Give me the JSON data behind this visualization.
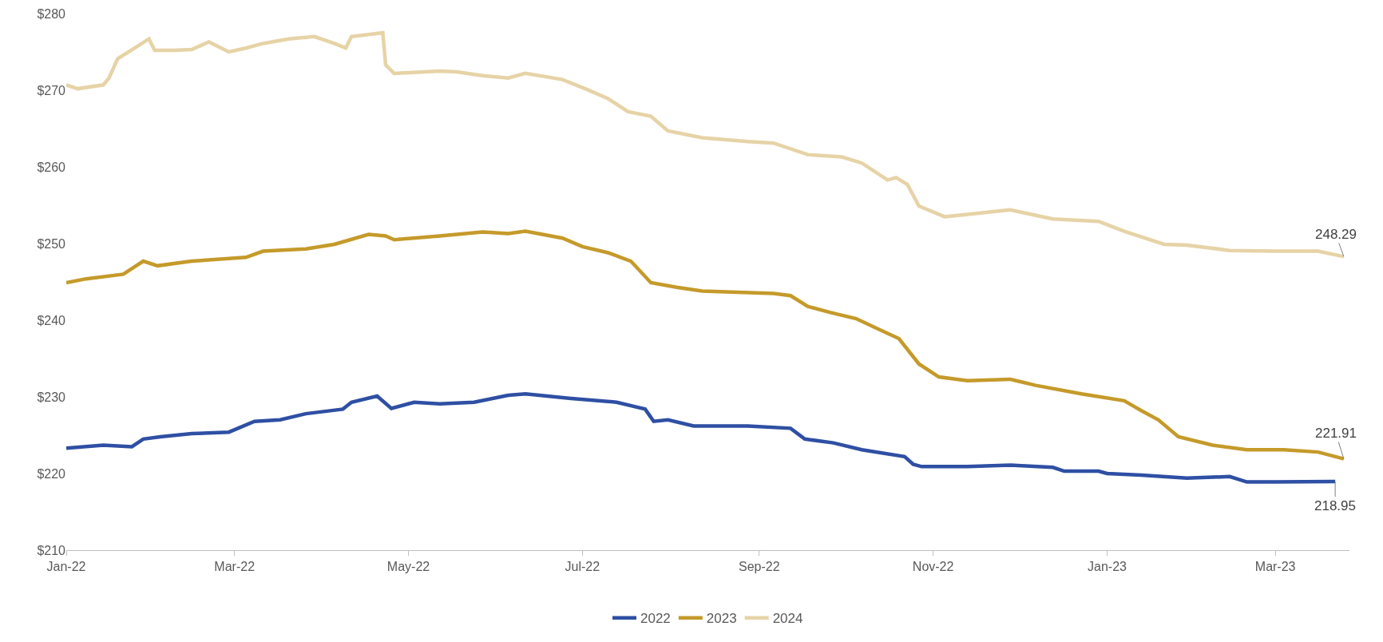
{
  "chart_data": {
    "type": "line",
    "xlim": [
      "2022-01-01",
      "2023-03-27"
    ],
    "xticks": [
      {
        "value": "2022-01-01",
        "label": "Jan-22"
      },
      {
        "value": "2022-03-01",
        "label": "Mar-22"
      },
      {
        "value": "2022-05-01",
        "label": "May-22"
      },
      {
        "value": "2022-07-01",
        "label": "Jul-22"
      },
      {
        "value": "2022-09-01",
        "label": "Sep-22"
      },
      {
        "value": "2022-11-01",
        "label": "Nov-22"
      },
      {
        "value": "2023-01-01",
        "label": "Jan-23"
      },
      {
        "value": "2023-03-01",
        "label": "Mar-23"
      }
    ],
    "ylim": [
      210,
      280
    ],
    "yticks": [
      {
        "value": 210,
        "label": "$210"
      },
      {
        "value": 220,
        "label": "$220"
      },
      {
        "value": 230,
        "label": "$230"
      },
      {
        "value": 240,
        "label": "$240"
      },
      {
        "value": 250,
        "label": "$250"
      },
      {
        "value": 260,
        "label": "$260"
      },
      {
        "value": 270,
        "label": "$270"
      },
      {
        "value": 280,
        "label": "$280"
      }
    ],
    "grid": false,
    "legend": "bottom",
    "marker": "none",
    "line_style": "solid",
    "series": [
      {
        "name": "2022",
        "color": "#2e4fa3",
        "x": [
          "2022-01-01",
          "2022-01-14",
          "2022-01-24",
          "2022-01-28",
          "2022-02-03",
          "2022-02-14",
          "2022-02-27",
          "2022-03-08",
          "2022-03-17",
          "2022-03-26",
          "2022-04-08",
          "2022-04-11",
          "2022-04-20",
          "2022-04-25",
          "2022-05-03",
          "2022-05-12",
          "2022-05-24",
          "2022-06-05",
          "2022-06-11",
          "2022-06-27",
          "2022-07-13",
          "2022-07-23",
          "2022-07-26",
          "2022-07-31",
          "2022-08-09",
          "2022-08-28",
          "2022-09-12",
          "2022-09-17",
          "2022-09-27",
          "2022-10-07",
          "2022-10-22",
          "2022-10-25",
          "2022-10-28",
          "2022-11-13",
          "2022-11-28",
          "2022-12-13",
          "2022-12-17",
          "2022-12-29",
          "2023-01-01",
          "2023-01-13",
          "2023-01-29",
          "2023-02-13",
          "2023-02-19",
          "2023-03-01",
          "2023-03-22"
        ],
        "values": [
          223.3,
          223.7,
          223.5,
          224.5,
          224.8,
          225.2,
          225.4,
          226.8,
          227.0,
          227.8,
          228.4,
          229.3,
          230.1,
          228.5,
          229.3,
          229.1,
          229.3,
          230.2,
          230.4,
          229.8,
          229.3,
          228.4,
          226.8,
          227.0,
          226.2,
          226.2,
          225.9,
          224.5,
          224.0,
          223.1,
          222.2,
          221.2,
          220.9,
          220.9,
          221.1,
          220.8,
          220.3,
          220.3,
          220.0,
          219.8,
          219.4,
          219.6,
          218.9,
          218.9,
          218.95
        ]
      },
      {
        "name": "2023",
        "color": "#c59a2a",
        "x": [
          "2022-01-01",
          "2022-01-08",
          "2022-01-21",
          "2022-01-28",
          "2022-02-02",
          "2022-02-14",
          "2022-03-05",
          "2022-03-11",
          "2022-03-26",
          "2022-04-05",
          "2022-04-17",
          "2022-04-23",
          "2022-04-26",
          "2022-05-12",
          "2022-05-27",
          "2022-06-05",
          "2022-06-11",
          "2022-06-24",
          "2022-07-01",
          "2022-07-10",
          "2022-07-18",
          "2022-07-25",
          "2022-08-03",
          "2022-08-12",
          "2022-09-06",
          "2022-09-12",
          "2022-09-18",
          "2022-09-26",
          "2022-10-05",
          "2022-10-13",
          "2022-10-20",
          "2022-10-27",
          "2022-11-03",
          "2022-11-13",
          "2022-11-28",
          "2022-12-07",
          "2022-12-23",
          "2023-01-07",
          "2023-01-13",
          "2023-01-19",
          "2023-01-26",
          "2023-02-07",
          "2023-02-19",
          "2023-03-04",
          "2023-03-16",
          "2023-03-25"
        ],
        "values": [
          244.9,
          245.4,
          246.0,
          247.7,
          247.1,
          247.7,
          248.2,
          249.0,
          249.3,
          249.9,
          251.2,
          251.0,
          250.5,
          251.0,
          251.5,
          251.3,
          251.6,
          250.7,
          249.6,
          248.8,
          247.7,
          244.9,
          244.3,
          243.8,
          243.5,
          243.2,
          241.8,
          241.0,
          240.2,
          238.8,
          237.6,
          234.3,
          232.6,
          232.1,
          232.3,
          231.5,
          230.4,
          229.5,
          228.2,
          227.0,
          224.8,
          223.7,
          223.1,
          223.1,
          222.8,
          221.91
        ]
      },
      {
        "name": "2024",
        "color": "#e6d3a6",
        "x": [
          "2022-01-01",
          "2022-01-05",
          "2022-01-14",
          "2022-01-16",
          "2022-01-19",
          "2022-01-25",
          "2022-01-30",
          "2022-02-01",
          "2022-02-08",
          "2022-02-14",
          "2022-02-20",
          "2022-02-27",
          "2022-03-05",
          "2022-03-11",
          "2022-03-20",
          "2022-03-29",
          "2022-04-05",
          "2022-04-09",
          "2022-04-11",
          "2022-04-22",
          "2022-04-23",
          "2022-04-26",
          "2022-05-12",
          "2022-05-18",
          "2022-05-27",
          "2022-06-05",
          "2022-06-11",
          "2022-06-24",
          "2022-07-02",
          "2022-07-10",
          "2022-07-17",
          "2022-07-25",
          "2022-07-31",
          "2022-08-12",
          "2022-08-28",
          "2022-09-06",
          "2022-09-18",
          "2022-09-30",
          "2022-10-07",
          "2022-10-16",
          "2022-10-19",
          "2022-10-23",
          "2022-10-27",
          "2022-11-05",
          "2022-11-13",
          "2022-11-28",
          "2022-12-13",
          "2022-12-29",
          "2023-01-07",
          "2023-01-21",
          "2023-01-29",
          "2023-02-13",
          "2023-03-01",
          "2023-03-16",
          "2023-03-25"
        ],
        "values": [
          270.7,
          270.2,
          270.7,
          271.6,
          274.1,
          275.5,
          276.7,
          275.2,
          275.2,
          275.3,
          276.3,
          275.0,
          275.5,
          276.1,
          276.7,
          277.0,
          276.1,
          275.5,
          277.0,
          277.5,
          273.3,
          272.2,
          272.5,
          272.4,
          271.9,
          271.6,
          272.2,
          271.4,
          270.2,
          268.9,
          267.2,
          266.6,
          264.7,
          263.8,
          263.3,
          263.1,
          261.6,
          261.3,
          260.5,
          258.3,
          258.6,
          257.7,
          254.9,
          253.5,
          253.8,
          254.4,
          253.2,
          252.9,
          251.6,
          249.9,
          249.8,
          249.1,
          249.0,
          249.0,
          248.29
        ]
      }
    ],
    "annotations": [
      {
        "text": "248.29",
        "x": "2023-03-25",
        "y": 248.29
      },
      {
        "text": "221.91",
        "x": "2023-03-25",
        "y": 221.91
      },
      {
        "text": "218.95",
        "x": "2023-03-22",
        "y": 218.95
      }
    ]
  }
}
